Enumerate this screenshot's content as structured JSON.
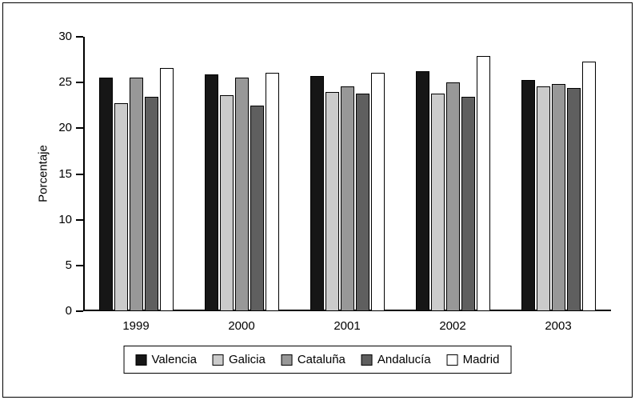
{
  "chart_data": {
    "type": "bar",
    "title": "",
    "xlabel": "",
    "ylabel": "Porcentaje",
    "ylim": [
      0,
      30
    ],
    "yticks": [
      0,
      5,
      10,
      15,
      20,
      25,
      30
    ],
    "grid": false,
    "legend_position": "bottom",
    "categories": [
      "1999",
      "2000",
      "2001",
      "2002",
      "2003"
    ],
    "series": [
      {
        "name": "Valencia",
        "color": "#161616",
        "values": [
          25.5,
          25.9,
          25.7,
          26.2,
          25.3
        ]
      },
      {
        "name": "Galicia",
        "color": "#cbcbcb",
        "values": [
          22.7,
          23.6,
          24.0,
          23.8,
          24.6
        ]
      },
      {
        "name": "Cataluña",
        "color": "#989898",
        "values": [
          25.5,
          25.5,
          24.6,
          25.0,
          24.8
        ]
      },
      {
        "name": "Andalucía",
        "color": "#5f5f5f",
        "values": [
          23.4,
          22.5,
          23.8,
          23.4,
          24.4
        ]
      },
      {
        "name": "Madrid",
        "color": "#ffffff",
        "values": [
          26.6,
          26.1,
          26.1,
          27.9,
          27.3
        ]
      }
    ]
  }
}
